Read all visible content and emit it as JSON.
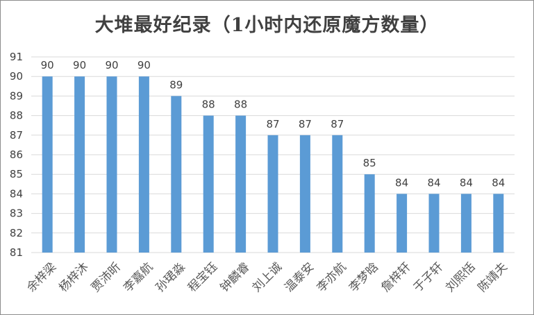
{
  "chart_data": {
    "type": "bar",
    "title": "大堆最好纪录（1小时内还原魔方数量）",
    "xlabel": "",
    "ylabel": "",
    "categories": [
      "余梓梁",
      "杨梓沐",
      "贾沛昕",
      "李嘉航",
      "孙珺淼",
      "程宝钰",
      "钟麟睿",
      "刘上诚",
      "温泰安",
      "李亦航",
      "李梦晗",
      "詹梓轩",
      "于子轩",
      "刘熙恬",
      "陈靖夫"
    ],
    "values": [
      90,
      90,
      90,
      90,
      89,
      88,
      88,
      87,
      87,
      87,
      85,
      84,
      84,
      84,
      84
    ],
    "ylim": [
      81,
      91
    ],
    "yticks": [
      "81",
      "82",
      "83",
      "84",
      "85",
      "86",
      "87",
      "88",
      "89",
      "90",
      "91"
    ],
    "grid": true,
    "legend": "none",
    "bar_color": "#5b9bd5",
    "grid_color": "#d9d9d9"
  }
}
